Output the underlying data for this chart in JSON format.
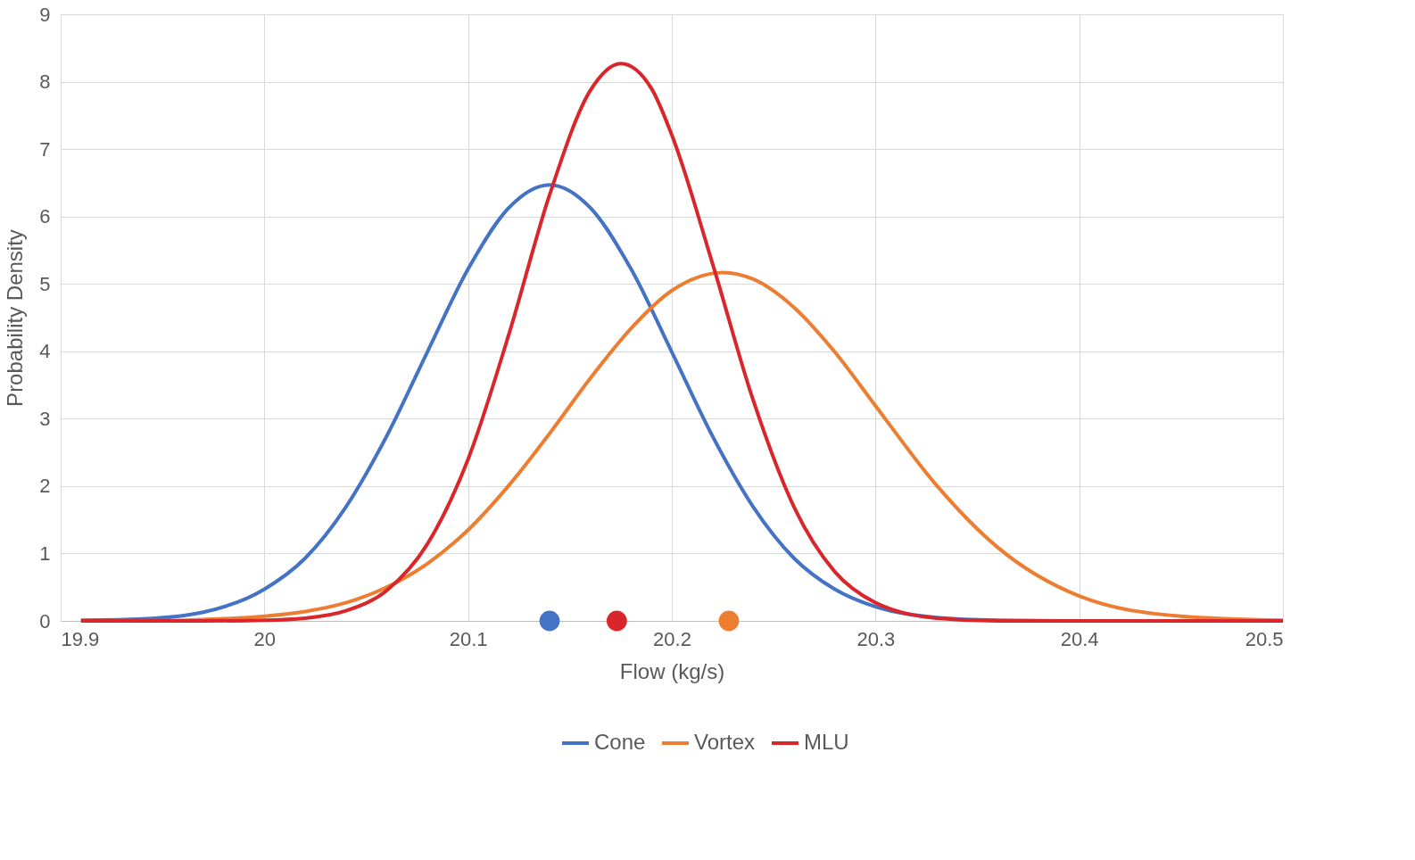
{
  "chart_data": {
    "type": "line",
    "xlabel": "Flow (kg/s)",
    "ylabel": "Probability Density",
    "xlim": [
      19.9,
      20.5
    ],
    "xticks": [
      19.9,
      20,
      20.1,
      20.2,
      20.3,
      20.4,
      20.5
    ],
    "ylim": [
      0,
      9
    ],
    "yticks": [
      0,
      1,
      2,
      3,
      4,
      5,
      6,
      7,
      8,
      9
    ],
    "grid": true,
    "legend": "bottom",
    "line_style": "solid",
    "series": [
      {
        "name": "Cone",
        "color": "#4472c4",
        "x": [
          19.91,
          19.94,
          19.97,
          20.0,
          20.02,
          20.04,
          20.06,
          20.08,
          20.1,
          20.12,
          20.14,
          20.16,
          20.18,
          20.2,
          20.22,
          20.24,
          20.26,
          20.28,
          20.3,
          20.33,
          20.36,
          20.4
        ],
        "values": [
          0.01,
          0.03,
          0.13,
          0.47,
          0.93,
          1.69,
          2.74,
          3.99,
          5.22,
          6.13,
          6.47,
          6.13,
          5.22,
          3.99,
          2.74,
          1.69,
          0.93,
          0.47,
          0.21,
          0.05,
          0.01,
          0
        ]
      },
      {
        "name": "Vortex",
        "color": "#ed7d31",
        "x": [
          19.91,
          19.94,
          19.97,
          20.0,
          20.02,
          20.04,
          20.06,
          20.08,
          20.1,
          20.12,
          20.14,
          20.16,
          20.18,
          20.2,
          20.225,
          20.24,
          20.26,
          20.28,
          20.3,
          20.33,
          20.36,
          20.4,
          20.45,
          20.5
        ],
        "values": [
          0,
          0,
          0.02,
          0.07,
          0.14,
          0.27,
          0.5,
          0.85,
          1.35,
          2.01,
          2.78,
          3.6,
          4.34,
          4.9,
          5.17,
          5.07,
          4.65,
          3.99,
          3.19,
          2.01,
          1.09,
          0.37,
          0.07,
          0.01
        ]
      },
      {
        "name": "MLU",
        "color": "#d9262a",
        "x": [
          19.91,
          19.94,
          19.97,
          20.0,
          20.02,
          20.04,
          20.06,
          20.08,
          20.1,
          20.12,
          20.14,
          20.16,
          20.175,
          20.19,
          20.2,
          20.22,
          20.24,
          20.26,
          20.28,
          20.3,
          20.33,
          20.36,
          20.4,
          20.45,
          20.5
        ],
        "values": [
          0,
          0,
          0,
          0.01,
          0.04,
          0.15,
          0.45,
          1.14,
          2.4,
          4.25,
          6.32,
          7.87,
          8.27,
          7.9,
          7.21,
          5.3,
          3.27,
          1.69,
          0.73,
          0.27,
          0.04,
          0,
          0,
          0,
          0
        ]
      },
      {
        "type": "scatter",
        "marker": "circle",
        "color": "#4472c4",
        "x": [
          20.14
        ],
        "values": [
          0
        ]
      },
      {
        "type": "scatter",
        "marker": "circle",
        "color": "#d9262a",
        "x": [
          20.173
        ],
        "values": [
          0
        ]
      },
      {
        "type": "scatter",
        "marker": "circle",
        "color": "#ed7d31",
        "x": [
          20.228
        ],
        "values": [
          0
        ]
      }
    ]
  }
}
